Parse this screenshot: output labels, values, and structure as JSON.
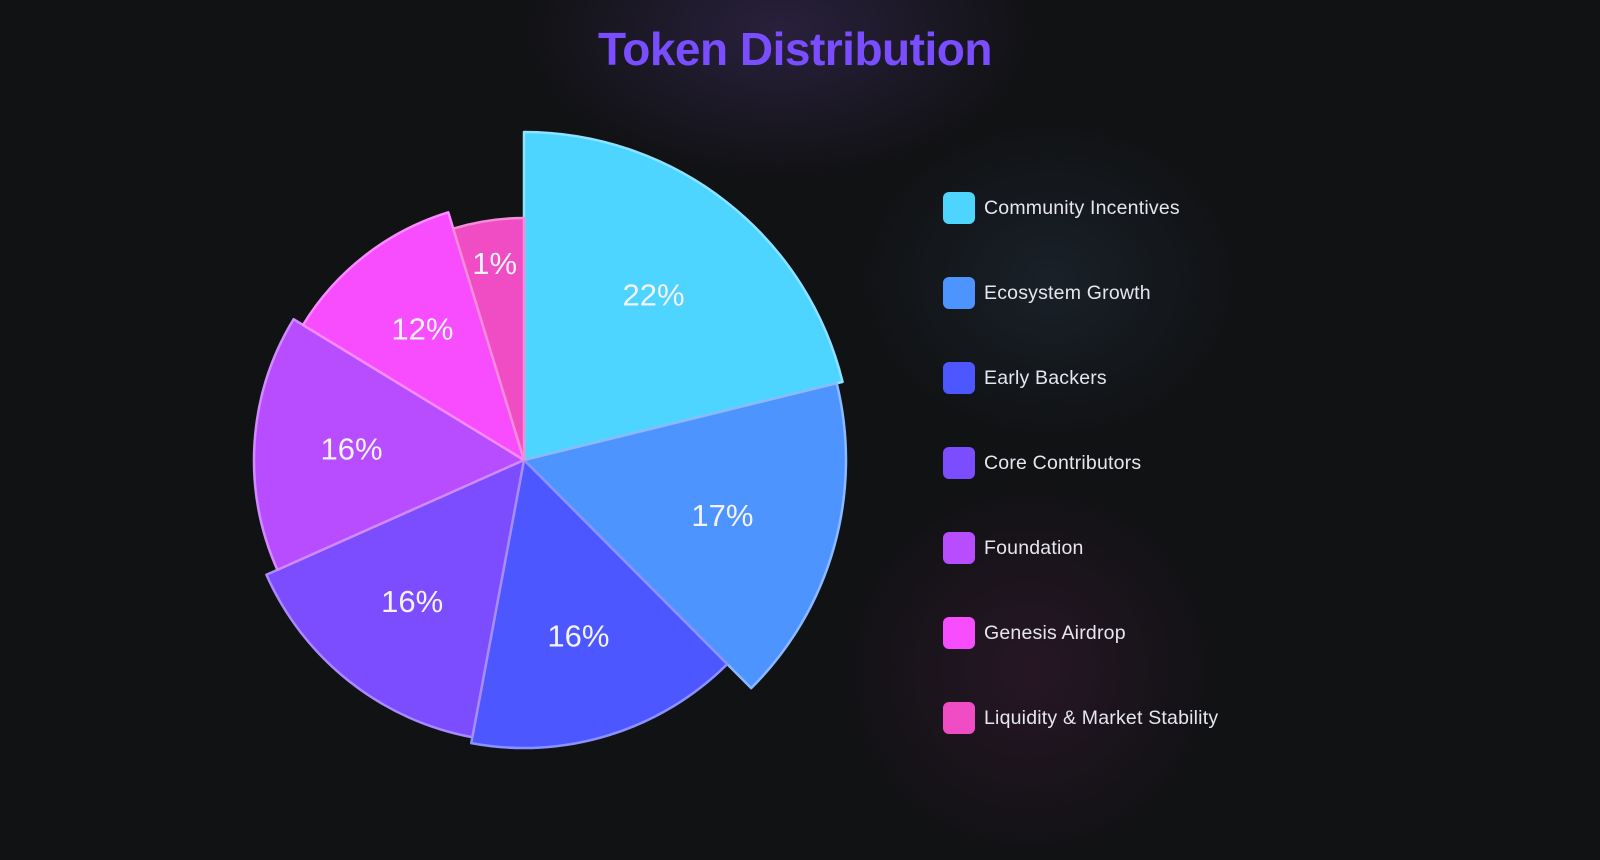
{
  "chart_data": {
    "type": "pie",
    "title": "Token Distribution",
    "categories": [
      "Community Incentives",
      "Ecosystem Growth",
      "Early Backers",
      "Core Contributors",
      "Foundation",
      "Genesis Airdrop",
      "Liquidity & Market Stability"
    ],
    "values": [
      22,
      17,
      16,
      16,
      16,
      12,
      1
    ],
    "labels": [
      "22%",
      "17%",
      "16%",
      "16%",
      "16%",
      "12%",
      "1%"
    ],
    "colors": [
      "#4dd4ff",
      "#4d94ff",
      "#4d57ff",
      "#7c4dff",
      "#b84dff",
      "#f74dff",
      "#f04dc4"
    ],
    "legend_position": "right",
    "start_angle": "top, clockwise"
  }
}
